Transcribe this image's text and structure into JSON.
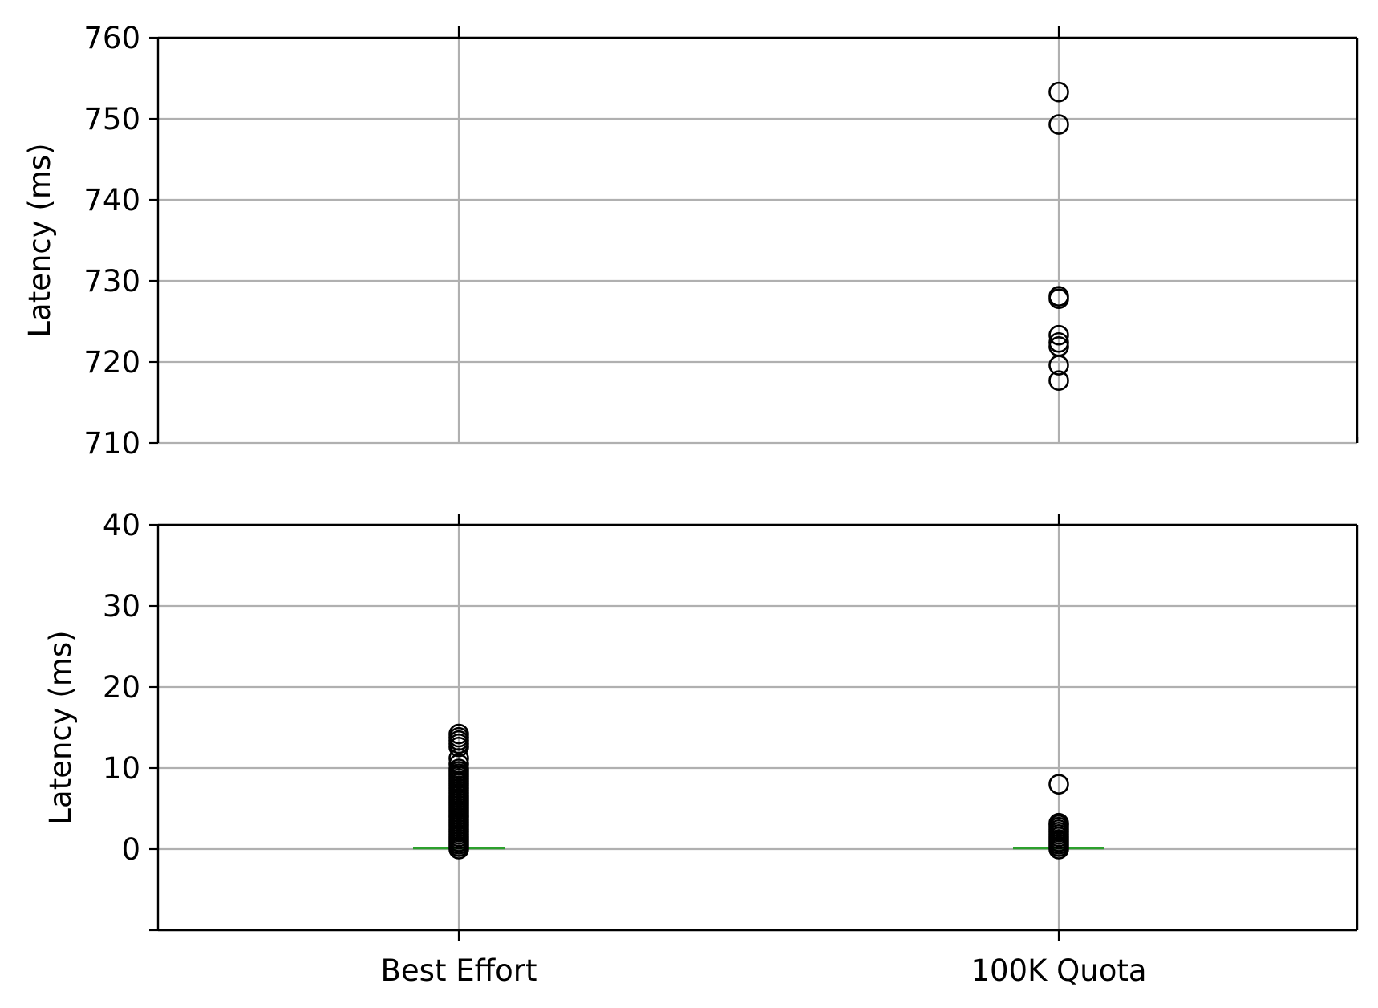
{
  "chart_data": {
    "type": "box",
    "categories": [
      "Best Effort",
      "100K Quota"
    ],
    "grid": true,
    "colors": {
      "axis": "#000000",
      "grid": "#b0b0b0",
      "median": "#2ca02c",
      "outlier_edge": "#000000"
    },
    "panels": [
      {
        "ylabel": "Latency (ms)",
        "ylim": [
          710,
          760
        ],
        "yticks": [
          "710",
          "720",
          "730",
          "740",
          "750",
          "760"
        ],
        "series": [
          {
            "outliers": []
          },
          {
            "outliers": [
              717.7,
              719.6,
              721.9,
              722.4,
              723.3,
              727.8,
              728.1,
              749.3,
              753.3
            ]
          }
        ]
      },
      {
        "ylabel": "Latency (ms)",
        "ylim": [
          -10,
          40
        ],
        "yticks": [
          "0",
          "10",
          "20",
          "30",
          "40"
        ],
        "series": [
          {
            "median": 0.1,
            "outliers": [
              0.0,
              0.3,
              0.6,
              0.9,
              1.2,
              1.5,
              1.8,
              2.1,
              2.4,
              2.7,
              3.0,
              3.3,
              3.6,
              3.9,
              4.2,
              4.5,
              4.8,
              5.1,
              5.4,
              5.7,
              6.0,
              6.3,
              6.6,
              6.9,
              7.2,
              7.5,
              7.8,
              8.1,
              8.4,
              8.7,
              9.0,
              9.3,
              9.6,
              9.9,
              10.5,
              11.2,
              12.6,
              13.0,
              13.4,
              13.8,
              14.2
            ]
          },
          {
            "median": 0.1,
            "outliers": [
              0.0,
              0.3,
              0.6,
              0.9,
              1.2,
              1.5,
              1.8,
              2.1,
              2.4,
              2.7,
              3.0,
              3.2,
              8.0
            ]
          }
        ]
      }
    ]
  }
}
